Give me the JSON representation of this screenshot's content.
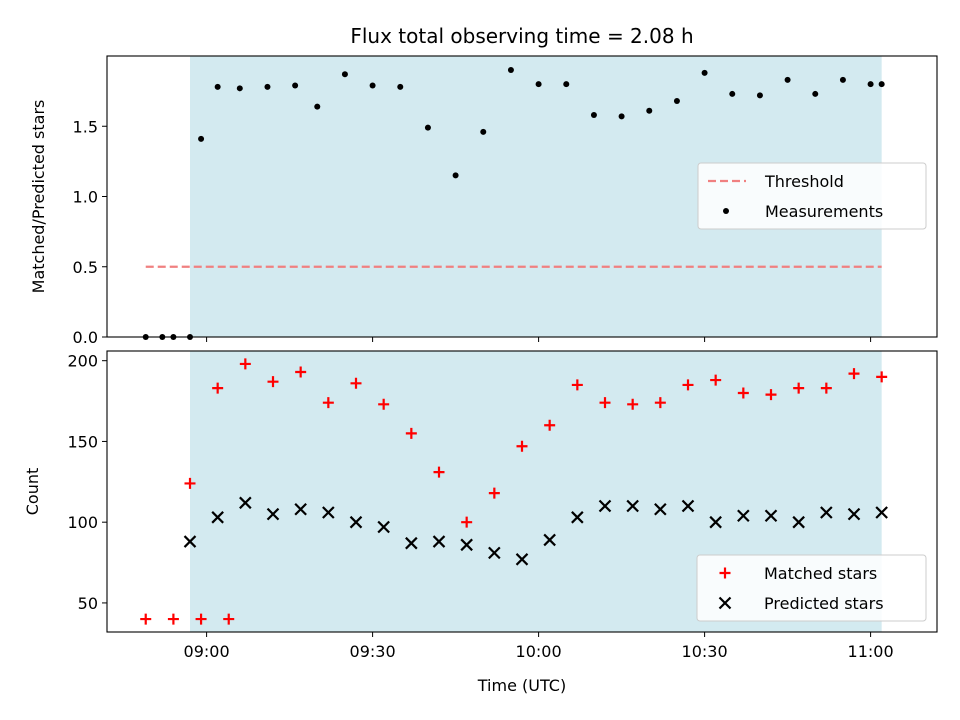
{
  "chart_data": [
    {
      "type": "scatter",
      "title": "Flux total observing time = 2.08 h",
      "xlabel": "",
      "ylabel": "Matched/Predicted stars",
      "xlim": [
        "08:42",
        "11:12"
      ],
      "ylim": [
        0,
        2.0
      ],
      "yticks": [
        0.0,
        0.5,
        1.0,
        1.5
      ],
      "ytick_labels": [
        "0.0",
        "0.5",
        "1.0",
        "1.5"
      ],
      "shaded_span": [
        "08:57",
        "11:02"
      ],
      "shaded_color": "#d3eaf0",
      "legend_position": "center-right",
      "series": [
        {
          "name": "Threshold",
          "kind": "dashed-line",
          "color": "#f08080",
          "x": [
            "08:49",
            "11:02"
          ],
          "y": [
            0.5,
            0.5
          ]
        },
        {
          "name": "Measurements",
          "kind": "dots",
          "color": "#000000",
          "x": [
            "08:49",
            "08:52",
            "08:54",
            "08:57",
            "08:59",
            "09:02",
            "09:06",
            "09:11",
            "09:16",
            "09:20",
            "09:25",
            "09:30",
            "09:35",
            "09:40",
            "09:45",
            "09:50",
            "09:55",
            "10:00",
            "10:05",
            "10:10",
            "10:15",
            "10:20",
            "10:25",
            "10:30",
            "10:35",
            "10:40",
            "10:45",
            "10:50",
            "10:55",
            "11:00",
            "11:02"
          ],
          "y": [
            0,
            0,
            0,
            0,
            1.41,
            1.78,
            1.77,
            1.78,
            1.79,
            1.64,
            1.87,
            1.79,
            1.78,
            1.49,
            1.15,
            1.46,
            1.9,
            1.8,
            1.8,
            1.58,
            1.57,
            1.61,
            1.68,
            1.88,
            1.73,
            1.72,
            1.83,
            1.73,
            1.83,
            1.8,
            1.8
          ]
        }
      ]
    },
    {
      "type": "scatter",
      "title": "",
      "xlabel": "Time (UTC)",
      "ylabel": "Count",
      "xlim": [
        "08:42",
        "11:12"
      ],
      "ylim": [
        32,
        206
      ],
      "yticks": [
        50,
        100,
        150,
        200
      ],
      "ytick_labels": [
        "50",
        "100",
        "150",
        "200"
      ],
      "xticks": [
        "09:00",
        "09:30",
        "10:00",
        "10:30",
        "11:00"
      ],
      "shaded_span": [
        "08:57",
        "11:02"
      ],
      "shaded_color": "#d3eaf0",
      "legend_position": "bottom-right",
      "series": [
        {
          "name": "Matched stars",
          "kind": "plus",
          "color": "#ff0000",
          "x": [
            "08:49",
            "08:54",
            "08:59",
            "09:04",
            "08:57",
            "09:02",
            "09:07",
            "09:12",
            "09:17",
            "09:22",
            "09:27",
            "09:32",
            "09:37",
            "09:42",
            "09:47",
            "09:52",
            "09:57",
            "10:02",
            "10:07",
            "10:12",
            "10:17",
            "10:22",
            "10:27",
            "10:32",
            "10:37",
            "10:42",
            "10:47",
            "10:52",
            "10:57",
            "11:02"
          ],
          "y": [
            40,
            40,
            40,
            40,
            124,
            183,
            198,
            187,
            193,
            174,
            186,
            173,
            155,
            131,
            100,
            118,
            147,
            160,
            185,
            174,
            173,
            174,
            185,
            188,
            180,
            179,
            183,
            183,
            192,
            190
          ]
        },
        {
          "name": "Predicted stars",
          "kind": "x",
          "color": "#000000",
          "x": [
            "08:57",
            "09:02",
            "09:07",
            "09:12",
            "09:17",
            "09:22",
            "09:27",
            "09:32",
            "09:37",
            "09:42",
            "09:47",
            "09:52",
            "09:57",
            "10:02",
            "10:07",
            "10:12",
            "10:17",
            "10:22",
            "10:27",
            "10:32",
            "10:37",
            "10:42",
            "10:47",
            "10:52",
            "10:57",
            "11:02"
          ],
          "y": [
            88,
            103,
            112,
            105,
            108,
            106,
            100,
            97,
            87,
            88,
            86,
            81,
            77,
            89,
            103,
            110,
            110,
            108,
            110,
            100,
            104,
            104,
            100,
            106,
            105,
            106
          ]
        }
      ]
    }
  ]
}
